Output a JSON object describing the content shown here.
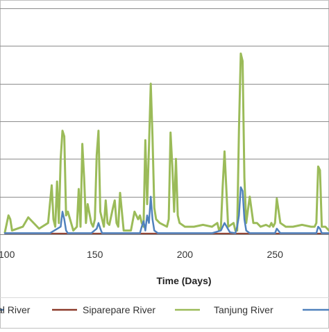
{
  "chart_data": {
    "type": "line",
    "title": "",
    "xlabel": "Time (Days)",
    "ylabel": "",
    "xlim": [
      100,
      280
    ],
    "ylim": [
      0,
      6
    ],
    "x_ticks": [
      100,
      150,
      200,
      250
    ],
    "x_tick_labels": [
      "100",
      "150",
      "200",
      "250"
    ],
    "y_gridlines": [
      1,
      2,
      3,
      4,
      5,
      6
    ],
    "grid": true,
    "legend": {
      "position": "bottom",
      "entries": [
        "al River",
        "Siparepare River",
        "Tanjung River"
      ]
    },
    "series": [
      {
        "name": "Siparepare River",
        "color": "#8b3a2a",
        "x": [
          100,
          280
        ],
        "y": [
          0.02,
          0.02
        ]
      },
      {
        "name": "Tanjung River",
        "color": "#9bbb59",
        "x": [
          100,
          102,
          103,
          104,
          110,
          113,
          119,
          124,
          125,
          126,
          127,
          128,
          129,
          130,
          131,
          132,
          133,
          134,
          135,
          138,
          140,
          141,
          142,
          143,
          144,
          145,
          146,
          148,
          149,
          150,
          151,
          152,
          153,
          155,
          156,
          157,
          158,
          160,
          161,
          162,
          163,
          164,
          166,
          170,
          172,
          174,
          175,
          176,
          177,
          178,
          179,
          180,
          181,
          182,
          183,
          184,
          186,
          190,
          191,
          192,
          193,
          194,
          195,
          196,
          197,
          200,
          205,
          210,
          215,
          218,
          219,
          220,
          221,
          222,
          224,
          227,
          228,
          229,
          230,
          231,
          232,
          233,
          234,
          236,
          238,
          240,
          242,
          245,
          247,
          248,
          249,
          250,
          251,
          253,
          256,
          260,
          265,
          270,
          272,
          273,
          274,
          275,
          276,
          278,
          280
        ],
        "y": [
          0.05,
          0.5,
          0.4,
          0.1,
          0.2,
          0.45,
          0.15,
          0.3,
          0.8,
          1.3,
          0.4,
          0.2,
          1.4,
          0.3,
          2.0,
          2.75,
          2.6,
          0.5,
          0.6,
          0.1,
          0.2,
          1.2,
          0.2,
          2.4,
          1.5,
          0.3,
          0.8,
          0.3,
          0.2,
          0.4,
          2.1,
          2.75,
          0.6,
          0.2,
          0.9,
          0.3,
          0.25,
          0.7,
          0.9,
          0.3,
          0.2,
          1.1,
          0.1,
          0.1,
          0.6,
          0.4,
          0.5,
          0.3,
          0.2,
          2.5,
          0.8,
          2.3,
          4.0,
          2.6,
          0.7,
          0.4,
          0.3,
          0.2,
          0.4,
          2.7,
          1.8,
          0.6,
          2.0,
          0.5,
          0.3,
          0.2,
          0.2,
          0.25,
          0.2,
          0.3,
          0.1,
          0.2,
          1.3,
          2.2,
          0.2,
          0.3,
          0.1,
          0.1,
          2.8,
          4.8,
          4.6,
          1.5,
          0.3,
          1.0,
          0.3,
          0.3,
          0.2,
          0.25,
          0.2,
          0.3,
          0.2,
          0.3,
          0.95,
          0.3,
          0.2,
          0.2,
          0.25,
          0.2,
          0.2,
          0.3,
          1.8,
          1.7,
          0.2,
          0.2,
          0.1
        ]
      },
      {
        "name": "",
        "color": "#4f81bd",
        "x": [
          100,
          125,
          131,
          132,
          133,
          134,
          135,
          140,
          145,
          148,
          151,
          152,
          153,
          154,
          160,
          165,
          175,
          176,
          177,
          178,
          179,
          180,
          181,
          182,
          183,
          185,
          195,
          200,
          215,
          220,
          221,
          222,
          225,
          228,
          229,
          230,
          231,
          232,
          233,
          234,
          236,
          240,
          250,
          251,
          253,
          260,
          273,
          274,
          275,
          276,
          280
        ],
        "y": [
          0.03,
          0.03,
          0.2,
          0.6,
          0.4,
          0.1,
          0.03,
          0.03,
          0.03,
          0.03,
          0.15,
          0.3,
          0.15,
          0.03,
          0.03,
          0.03,
          0.03,
          0.2,
          0.35,
          0.1,
          0.5,
          0.3,
          1.0,
          0.4,
          0.1,
          0.03,
          0.03,
          0.03,
          0.03,
          0.1,
          0.2,
          0.3,
          0.05,
          0.03,
          0.2,
          0.5,
          1.25,
          1.15,
          0.4,
          0.1,
          0.03,
          0.03,
          0.03,
          0.15,
          0.03,
          0.03,
          0.03,
          0.2,
          0.15,
          0.03,
          0.03
        ]
      }
    ]
  }
}
